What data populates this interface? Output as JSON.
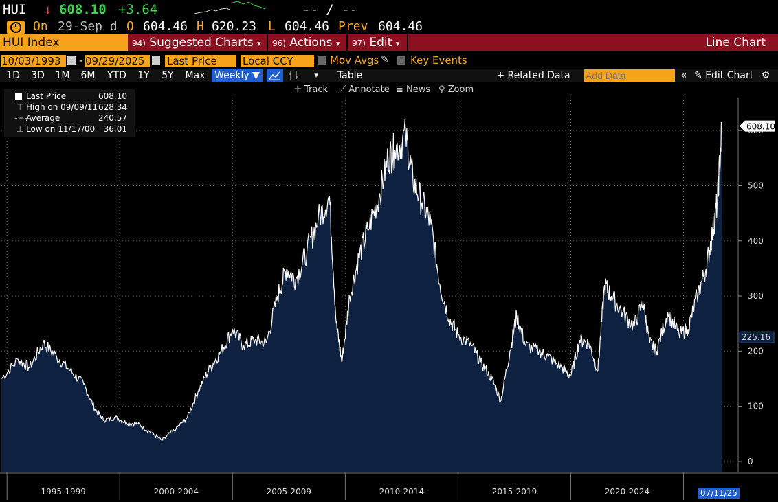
{
  "header": {
    "ticker": "HUI",
    "arrow": "↓",
    "last": "608.10",
    "change": "+3.64",
    "bid_ask": "-- / --"
  },
  "quote": {
    "on_label": "On",
    "date": "29-Sep d",
    "open_label": "O",
    "open": "604.46",
    "high_label": "H",
    "high": "620.23",
    "low_label": "L",
    "low": "604.46",
    "prev_label": "Prev",
    "prev": "604.46"
  },
  "menubar": {
    "security": "HUI Index",
    "suggested_num": "94)",
    "suggested": "Suggested Charts",
    "actions_num": "96)",
    "actions": "Actions",
    "edit_num": "97)",
    "edit": "Edit",
    "title": "Line Chart"
  },
  "settings": {
    "start_date": "10/03/1993",
    "dash": "-",
    "end_date": "09/29/2025",
    "field": "Last Price",
    "currency": "Local CCY",
    "mov_avgs": "Mov Avgs",
    "key_events": "Key Events"
  },
  "toolbar": {
    "timeframes": [
      "1D",
      "3D",
      "1M",
      "6M",
      "YTD",
      "1Y",
      "5Y",
      "Max"
    ],
    "period": "Weekly ▼",
    "table": "Table",
    "related_data": "+ Related Data",
    "add_data_placeholder": "Add Data",
    "edit_chart": "Edit Chart"
  },
  "tools": {
    "track": "Track",
    "annotate": "Annotate",
    "news": "News",
    "zoom": "Zoom"
  },
  "legend": {
    "last_price_label": "Last Price",
    "last_price": "608.10",
    "high_label": "High on 09/09/11",
    "high": "628.34",
    "average_label": "Average",
    "average": "240.57",
    "low_label": "Low on 11/17/00",
    "low": "36.01"
  },
  "colors": {
    "area_fill": "#0e2140",
    "line": "#ffffff",
    "accent_orange": "#f7a21b",
    "menu_red": "#8b1020",
    "up_green": "#3bd44a",
    "down_red": "#ff3030"
  },
  "chart_data": {
    "type": "area",
    "series": [
      {
        "name": "Last Price",
        "x": [
          1993.75,
          1994.5,
          1995.0,
          1995.6,
          1996.2,
          1996.8,
          1997.4,
          1997.9,
          1998.3,
          1998.8,
          1999.3,
          1999.8,
          2000.3,
          2000.88,
          2001.5,
          2002.0,
          2002.5,
          2003.0,
          2003.5,
          2004.0,
          2004.5,
          2005.0,
          2005.5,
          2006.0,
          2006.4,
          2006.8,
          2007.3,
          2007.8,
          2008.3,
          2008.6,
          2008.85,
          2009.2,
          2009.6,
          2010.0,
          2010.5,
          2010.9,
          2011.2,
          2011.68,
          2012.0,
          2012.4,
          2012.8,
          2013.2,
          2013.6,
          2014.0,
          2014.6,
          2015.0,
          2015.5,
          2015.9,
          2016.3,
          2016.6,
          2017.0,
          2017.6,
          2018.0,
          2018.6,
          2019.0,
          2019.4,
          2019.8,
          2020.2,
          2020.5,
          2020.8,
          2021.3,
          2021.8,
          2022.2,
          2022.5,
          2022.8,
          2023.3,
          2023.8,
          2024.2,
          2024.6,
          2025.0,
          2025.3,
          2025.5,
          2025.7
        ],
        "y": [
          150,
          185,
          170,
          215,
          190,
          165,
          140,
          95,
          75,
          80,
          70,
          68,
          55,
          38,
          60,
          80,
          130,
          170,
          200,
          240,
          210,
          220,
          215,
          300,
          350,
          330,
          380,
          440,
          480,
          250,
          180,
          300,
          370,
          420,
          480,
          550,
          565,
          590,
          510,
          470,
          430,
          320,
          260,
          230,
          210,
          180,
          150,
          110,
          200,
          265,
          210,
          200,
          190,
          170,
          155,
          220,
          215,
          165,
          320,
          300,
          270,
          245,
          290,
          215,
          200,
          270,
          230,
          240,
          300,
          350,
          420,
          470,
          608.1
        ]
      }
    ],
    "x_categories": [
      "1995-1999",
      "2000-2004",
      "2005-2009",
      "2010-2014",
      "2015-2019",
      "2020-2024"
    ],
    "yticks": [
      0,
      100,
      200,
      300,
      400,
      500,
      600
    ],
    "ylim": [
      -20,
      660
    ],
    "xlim": [
      1993.75,
      2026.3
    ],
    "last_value_label": "608.10",
    "secondary_label": "225.16",
    "x_cursor_label": "07/11/25",
    "grid": true
  }
}
